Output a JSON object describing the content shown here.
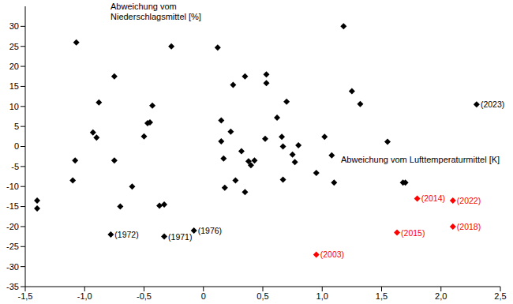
{
  "chart_data": {
    "type": "scatter",
    "x_label": "Abweichung vom Lufttemperaturmittel [K]",
    "y_label": "Abweichung vom Niederschlagsmittel [%]",
    "xlim": [
      -1.5,
      2.5
    ],
    "xticks": [
      {
        "value": -1.5,
        "label": "-1,5"
      },
      {
        "value": -1,
        "label": "-1,0"
      },
      {
        "value": -0.5,
        "label": "-0,5"
      },
      0,
      {
        "value": 0.5,
        "label": "0,5"
      },
      {
        "value": 1,
        "label": "1,0"
      },
      {
        "value": 1.5,
        "label": "1,5"
      },
      {
        "value": 2,
        "label": "2,0"
      },
      {
        "value": 2.5,
        "label": "2,5"
      }
    ],
    "ylim": [
      -35,
      35
    ],
    "yticks": [
      -35,
      -30,
      -25,
      -20,
      -15,
      -10,
      -5,
      0,
      5,
      10,
      15,
      20,
      25,
      30
    ],
    "grid": false,
    "series": [
      {
        "color": "#000000",
        "marker": "diamond",
        "x": [
          -1.07,
          -1.4,
          -1.4,
          -1.08,
          -1.1,
          -0.88,
          -0.93,
          -0.9,
          -0.75,
          -0.75,
          -0.7,
          -0.78,
          -0.6,
          -0.5,
          -0.47,
          -0.45,
          -0.43,
          -0.37,
          -0.33,
          -0.33,
          -0.27,
          -0.08,
          0.12,
          0.15,
          0.15,
          0.17,
          0.18,
          0.23,
          0.25,
          0.27,
          0.32,
          0.35,
          0.35,
          0.38,
          0.4,
          0.43,
          0.52,
          0.53,
          0.53,
          0.62,
          0.66,
          0.67,
          0.67,
          0.7,
          0.75,
          0.77,
          0.8,
          0.95,
          1.02,
          1.08,
          1.1,
          1.18,
          1.25,
          1.32,
          1.55,
          1.68,
          1.7,
          2.3
        ],
        "values": [
          26,
          -13.5,
          -15.5,
          -3.5,
          -8.5,
          11,
          3.5,
          2.2,
          17.5,
          -3.5,
          -15,
          -22,
          -10,
          2.5,
          5.8,
          6,
          10.2,
          -14.8,
          -14.5,
          -22.5,
          25,
          -21,
          24.7,
          6.5,
          1.3,
          -3,
          -10.3,
          3.7,
          15.4,
          -8.5,
          -1.2,
          17.5,
          -11.4,
          -3.7,
          -4.7,
          -3.5,
          1.9,
          18,
          15.8,
          7.2,
          2.4,
          0,
          -8.3,
          11.2,
          -2,
          -3.9,
          0.3,
          -6.6,
          2.4,
          -2.2,
          -9,
          30,
          13.8,
          10.6,
          1.2,
          -9,
          -9,
          10.5
        ],
        "labels": [
          null,
          null,
          null,
          null,
          null,
          null,
          null,
          null,
          null,
          null,
          null,
          "(1972)",
          null,
          null,
          null,
          null,
          null,
          null,
          null,
          "(1971)",
          null,
          "(1976)",
          null,
          null,
          null,
          null,
          null,
          null,
          null,
          null,
          null,
          null,
          null,
          null,
          null,
          null,
          null,
          null,
          null,
          null,
          null,
          null,
          null,
          null,
          null,
          null,
          null,
          null,
          null,
          null,
          null,
          null,
          null,
          null,
          null,
          null,
          null,
          "(2023)"
        ]
      },
      {
        "color": "#ff0000",
        "marker": "diamond",
        "x": [
          0.95,
          1.8,
          1.63,
          2.1,
          2.1
        ],
        "values": [
          -27,
          -13,
          -21.5,
          -13.5,
          -20
        ],
        "labels": [
          "(2003)",
          "(2014)",
          "(2015)",
          "(2022)",
          "(2018)"
        ]
      }
    ]
  }
}
